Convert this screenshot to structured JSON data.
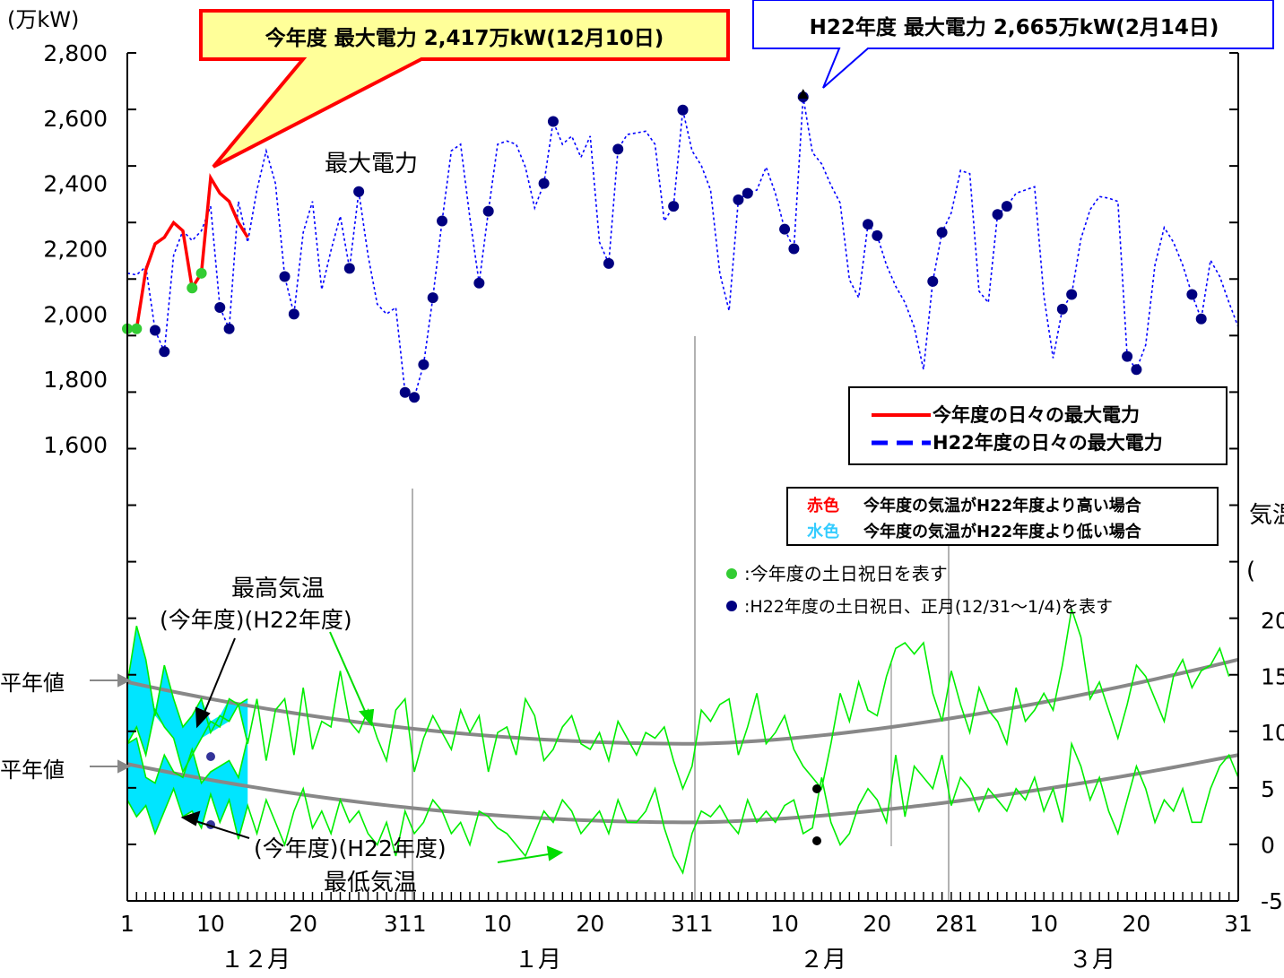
{
  "chart_data": {
    "type": "line",
    "y_left_unit": "(万kW)",
    "y_left_ticks": [
      "2,800",
      "2,600",
      "2,400",
      "2,200",
      "2,000",
      "1,800",
      "1,600"
    ],
    "y_left_range": [
      1600,
      2800
    ],
    "y_right_label_visible": "気温",
    "y_right_paren": "(",
    "y_right_ticks": [
      "20",
      "15",
      "10",
      "5",
      "0",
      "-5"
    ],
    "y_right_range": [
      -5,
      20
    ],
    "x_tick_labels": [
      "1",
      "10",
      "20",
      "311",
      "10",
      "20",
      "311",
      "10",
      "20",
      "281",
      "10",
      "20",
      "31"
    ],
    "month_labels": [
      "１２月",
      "１月",
      "２月",
      "３月"
    ],
    "annotations": {
      "current_peak": "今年度 最大電力 2,417万kW(12月10日)",
      "prev_peak": "H22年度 最大電力 2,665万kW(2月14日)",
      "max_power_label": "最大電力",
      "max_temp_label": "最高気温",
      "max_temp_sub": "(今年度)(H22年度)",
      "min_temp_sub": "(今年度)(H22年度)",
      "min_temp_label": "最低気温",
      "normal1": "平年値",
      "normal2": "平年値"
    },
    "legend": {
      "current_series": "今年度の日々の最大電力",
      "prev_series": "H22年度の日々の最大電力",
      "red_word": "赤色",
      "red_text": "今年度の気温がH22年度より高い場合",
      "cyan_word": "水色",
      "cyan_text": "今年度の気温がH22年度より低い場合",
      "green_dot_text": ":今年度の土日祝日を表す",
      "navy_dot_text": ":H22年度の土日祝日、正月(12/31～1/4)を表す"
    },
    "colors": {
      "current": "#ff0000",
      "prev": "#0000ff",
      "navy_dot": "#000080",
      "green": "#33cc33",
      "temp_line": "#00ee00",
      "normal": "#888888",
      "cyan": "#00e5ff"
    },
    "series": [
      {
        "name": "今年度の日々の最大電力",
        "days": [
          1,
          2,
          3,
          4,
          5,
          6,
          7,
          8,
          9,
          10,
          11,
          12,
          13,
          14
        ],
        "values": [
          1955,
          1955,
          2135,
          2215,
          2235,
          2280,
          2255,
          2080,
          2125,
          2417,
          2370,
          2345,
          2280,
          2235
        ],
        "holiday_days": [
          1,
          2,
          8,
          9
        ]
      },
      {
        "name": "H22年度の日々の最大電力",
        "values": [
          2125,
          2120,
          2145,
          1950,
          1885,
          2180,
          2255,
          2225,
          2255,
          2330,
          2020,
          1955,
          2345,
          2220,
          2380,
          2500,
          2400,
          2115,
          2000,
          2250,
          2345,
          2075,
          2195,
          2300,
          2140,
          2375,
          2180,
          2030,
          2000,
          2020,
          1760,
          1745,
          1845,
          2050,
          2285,
          2500,
          2520,
          2295,
          2095,
          2315,
          2520,
          2530,
          2520,
          2450,
          2325,
          2400,
          2590,
          2520,
          2545,
          2480,
          2545,
          2220,
          2155,
          2505,
          2550,
          2555,
          2560,
          2520,
          2285,
          2330,
          2625,
          2500,
          2455,
          2380,
          2125,
          2010,
          2350,
          2370,
          2380,
          2450,
          2370,
          2260,
          2200,
          2665,
          2495,
          2460,
          2395,
          2340,
          2105,
          2050,
          2275,
          2240,
          2150,
          2085,
          2035,
          1960,
          1830,
          2100,
          2250,
          2310,
          2440,
          2430,
          2070,
          2035,
          2305,
          2330,
          2370,
          2380,
          2390,
          2055,
          1865,
          2015,
          2060,
          2230,
          2320,
          2360,
          2355,
          2345,
          1870,
          1830,
          1905,
          2150,
          2265,
          2220,
          2150,
          2060,
          1985,
          2165,
          2115,
          2035,
          1960
        ],
        "holiday_days": [
          4,
          5,
          11,
          12,
          18,
          19,
          25,
          26,
          31,
          32,
          33,
          34,
          35,
          39,
          40,
          46,
          47,
          53,
          54,
          60,
          61,
          67,
          68,
          72,
          73,
          74,
          81,
          82,
          88,
          89,
          95,
          96,
          102,
          103,
          109,
          110,
          116,
          117
        ]
      },
      {
        "name": "最高気温(今年度)",
        "values": [
          14.3,
          19.5,
          16.5,
          11.5,
          16.0,
          13.0,
          10.5,
          11.5,
          13.0,
          10.0,
          11.5,
          11.0,
          12.5,
          13.0
        ]
      },
      {
        "name": "最低気温(今年度)",
        "values": [
          9.0,
          9.5,
          6.0,
          5.5,
          8.0,
          6.5,
          6.0,
          8.5,
          5.5,
          6.5,
          7.0,
          7.5,
          6.0,
          9.5
        ]
      },
      {
        "name": "最高気温(H22年度)",
        "values": [
          9,
          10.5,
          8,
          12,
          10.5,
          9.5,
          6.5,
          8,
          9.5,
          11,
          10.5,
          13,
          12.5,
          9,
          13,
          7.5,
          12,
          13,
          8,
          14,
          8.5,
          11,
          10.5,
          15.5,
          11,
          10,
          12,
          9.5,
          7.5,
          12,
          13,
          6.5,
          9.5,
          11.5,
          10,
          8.5,
          12,
          10,
          11.5,
          6.5,
          10,
          10.5,
          8,
          13,
          11.5,
          7.5,
          8.5,
          10.5,
          11.5,
          9,
          8.5,
          10,
          7.5,
          11,
          9.5,
          8,
          10,
          9.5,
          10.5,
          7.5,
          5,
          7,
          12,
          11,
          12.5,
          13,
          8,
          10.5,
          13.5,
          9,
          10,
          11.5,
          8.5,
          7,
          6,
          5,
          9,
          13.5,
          11,
          14.5,
          12,
          11.5,
          15,
          17.5,
          18,
          17,
          18,
          13.5,
          11,
          15.5,
          12.5,
          10,
          14,
          12,
          11,
          9,
          14,
          11,
          12,
          13.5,
          12,
          16,
          21,
          18.5,
          13,
          14.5,
          12,
          9.5,
          12.5,
          16,
          15,
          13,
          11,
          15,
          16.5,
          14,
          15.5,
          16,
          17.5,
          15
        ]
      },
      {
        "name": "最低気温(H22年度)",
        "values": [
          4,
          2.5,
          3.5,
          1,
          3,
          5,
          2.5,
          3,
          1.5,
          4.5,
          2,
          4,
          0.5,
          3.5,
          1,
          4,
          2,
          0,
          3,
          5,
          1.5,
          3,
          1,
          4,
          2,
          3,
          1,
          0,
          2,
          -1,
          3,
          1,
          2,
          4,
          3,
          1,
          2,
          0,
          3,
          2.5,
          1.5,
          1,
          0,
          -1,
          1,
          3,
          2,
          4,
          3,
          1,
          2,
          3,
          1,
          4,
          2,
          2,
          3,
          5,
          1.5,
          -1,
          -2.5,
          1,
          3,
          2.5,
          3.5,
          2,
          1,
          4,
          2,
          3,
          2,
          3.5,
          4,
          1,
          1.5,
          6,
          2,
          0,
          1,
          3.5,
          5,
          4,
          2,
          8,
          2.5,
          7,
          6,
          5,
          8,
          3.5,
          6,
          5,
          3,
          5,
          4,
          3,
          5,
          4,
          6,
          3,
          5,
          2,
          9,
          7,
          4,
          6,
          3,
          1,
          4,
          7,
          5,
          2,
          4,
          3,
          5,
          2,
          2,
          5,
          7,
          8,
          6
        ]
      },
      {
        "name": "平年値(最高気温)",
        "start": 14.5,
        "min": 9.0,
        "min_day": 62,
        "end": 16.5
      },
      {
        "name": "平年値(最低気温)",
        "start": 7.2,
        "min": 2.0,
        "min_day": 62,
        "end": 8.0
      }
    ]
  }
}
